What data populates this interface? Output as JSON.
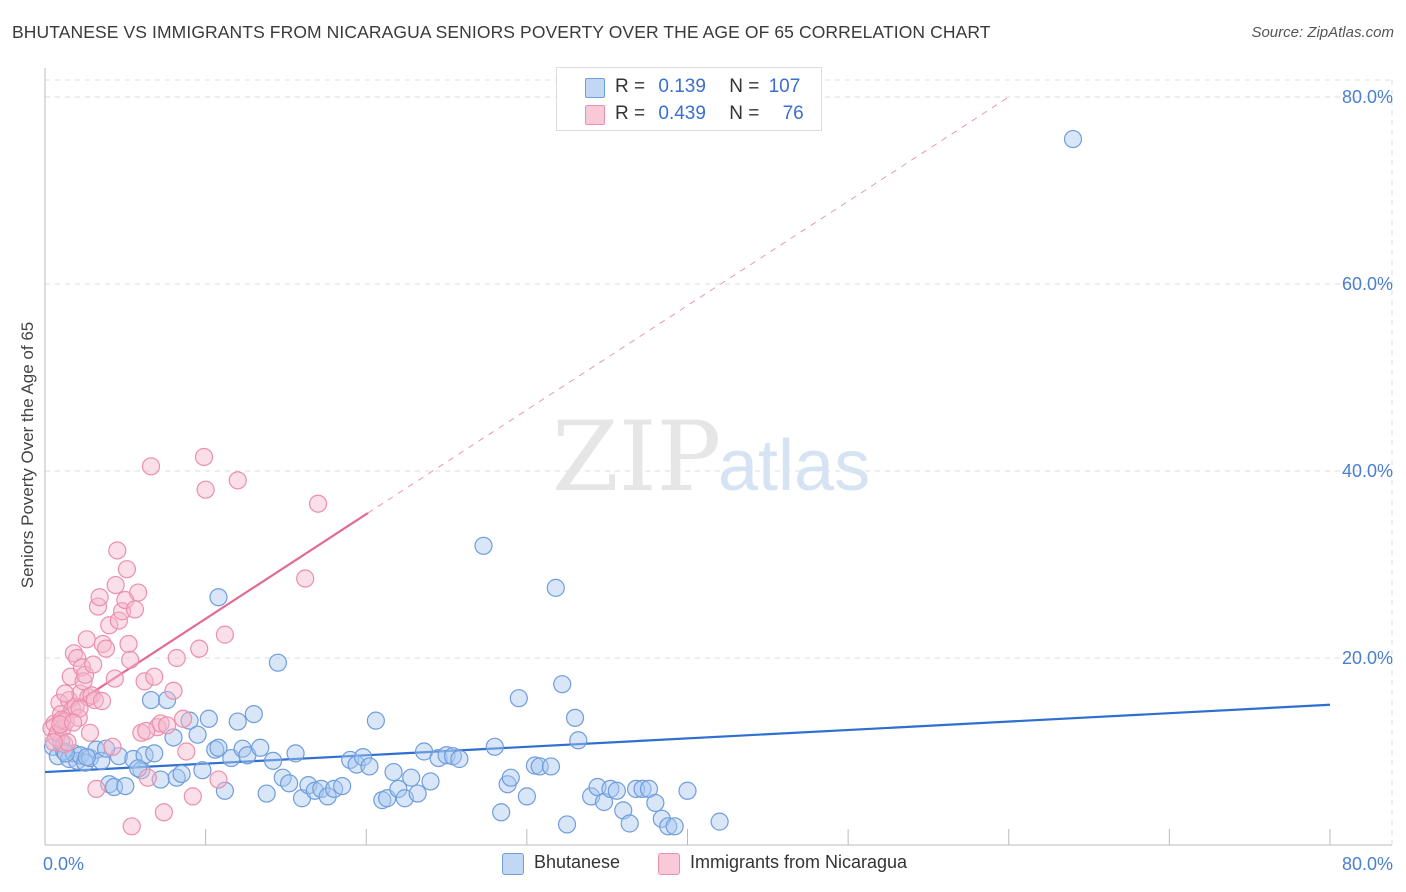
{
  "title": "BHUTANESE VS IMMIGRANTS FROM NICARAGUA SENIORS POVERTY OVER THE AGE OF 65 CORRELATION CHART",
  "source": "Source: ZipAtlas.com",
  "watermark": {
    "zip": "ZIP",
    "atlas": "atlas"
  },
  "legend": {
    "rows": [
      {
        "r_label": "R =",
        "r_value": "0.139",
        "n_label": "N =",
        "n_value": "107"
      },
      {
        "r_label": "R =",
        "r_value": "0.439",
        "n_label": "N =",
        "n_value": "76"
      }
    ]
  },
  "colors": {
    "blue_fill": "#a9c7ef",
    "blue_stroke": "#6f9ddd",
    "blue_line": "#2f6fd0",
    "pink_fill": "#f5b8cb",
    "pink_stroke": "#ec8fad",
    "pink_line": "#e36b93",
    "axis_text": "#4a7fd0"
  },
  "chart_data": {
    "type": "scatter",
    "title": "BHUTANESE VS IMMIGRANTS FROM NICARAGUA SENIORS POVERTY OVER THE AGE OF 65 CORRELATION CHART",
    "xlabel": "",
    "ylabel": "Seniors Poverty Over the Age of 65",
    "xlim": [
      0,
      80
    ],
    "ylim": [
      0,
      80
    ],
    "x_tick_labels": [
      "0.0%",
      "80.0%"
    ],
    "y_tick_values": [
      20,
      40,
      60,
      80
    ],
    "y_tick_labels": [
      "20.0%",
      "40.0%",
      "60.0%",
      "80.0%"
    ],
    "grid": true,
    "series": [
      {
        "name": "Bhutanese",
        "color": "blue",
        "r": 0.139,
        "n": 107,
        "trend": {
          "x": [
            0,
            80
          ],
          "y": [
            7.8,
            15.0
          ]
        },
        "points": [
          [
            0.5,
            10.5
          ],
          [
            0.8,
            9.5
          ],
          [
            1.0,
            11.0
          ],
          [
            1.2,
            10.0
          ],
          [
            1.5,
            9.2
          ],
          [
            1.8,
            9.8
          ],
          [
            2.0,
            9.0
          ],
          [
            2.2,
            9.6
          ],
          [
            2.5,
            8.8
          ],
          [
            2.8,
            9.3
          ],
          [
            3.2,
            10.2
          ],
          [
            3.5,
            9.0
          ],
          [
            4.0,
            6.5
          ],
          [
            4.3,
            6.2
          ],
          [
            4.6,
            9.5
          ],
          [
            5.0,
            6.3
          ],
          [
            5.5,
            9.2
          ],
          [
            6.0,
            8.0
          ],
          [
            6.2,
            9.6
          ],
          [
            6.6,
            15.5
          ],
          [
            6.8,
            9.8
          ],
          [
            7.2,
            7.0
          ],
          [
            7.6,
            15.5
          ],
          [
            8.0,
            11.5
          ],
          [
            8.2,
            7.2
          ],
          [
            8.5,
            7.6
          ],
          [
            9.0,
            13.3
          ],
          [
            9.5,
            11.8
          ],
          [
            9.8,
            8.0
          ],
          [
            10.2,
            13.5
          ],
          [
            10.6,
            10.2
          ],
          [
            10.8,
            10.4
          ],
          [
            11.2,
            5.8
          ],
          [
            11.6,
            9.3
          ],
          [
            12.0,
            13.2
          ],
          [
            12.3,
            10.3
          ],
          [
            12.6,
            9.6
          ],
          [
            13.0,
            14.0
          ],
          [
            13.4,
            10.4
          ],
          [
            13.8,
            5.5
          ],
          [
            14.2,
            9.0
          ],
          [
            14.5,
            19.5
          ],
          [
            14.8,
            7.2
          ],
          [
            15.2,
            6.6
          ],
          [
            15.6,
            9.8
          ],
          [
            16.0,
            5.0
          ],
          [
            16.4,
            6.4
          ],
          [
            16.8,
            5.8
          ],
          [
            17.2,
            6.0
          ],
          [
            17.6,
            5.2
          ],
          [
            18.0,
            6.0
          ],
          [
            18.5,
            6.3
          ],
          [
            19.0,
            9.1
          ],
          [
            19.4,
            8.6
          ],
          [
            19.8,
            9.4
          ],
          [
            20.2,
            8.4
          ],
          [
            20.6,
            13.3
          ],
          [
            21.0,
            4.8
          ],
          [
            21.3,
            5.0
          ],
          [
            21.7,
            7.8
          ],
          [
            22.0,
            6.0
          ],
          [
            22.4,
            5.0
          ],
          [
            22.8,
            7.2
          ],
          [
            23.2,
            5.5
          ],
          [
            23.6,
            10.0
          ],
          [
            24.0,
            6.8
          ],
          [
            24.5,
            9.3
          ],
          [
            25.0,
            9.6
          ],
          [
            25.4,
            9.5
          ],
          [
            25.8,
            9.2
          ],
          [
            10.8,
            26.5
          ],
          [
            27.3,
            32.0
          ],
          [
            28.0,
            10.5
          ],
          [
            28.4,
            3.5
          ],
          [
            28.8,
            6.5
          ],
          [
            29.0,
            7.2
          ],
          [
            29.5,
            15.7
          ],
          [
            30.0,
            5.2
          ],
          [
            30.5,
            8.5
          ],
          [
            30.8,
            8.4
          ],
          [
            31.5,
            8.4
          ],
          [
            31.8,
            27.5
          ],
          [
            32.2,
            17.2
          ],
          [
            32.5,
            2.2
          ],
          [
            33.0,
            13.6
          ],
          [
            33.2,
            11.2
          ],
          [
            34.0,
            5.2
          ],
          [
            34.4,
            6.2
          ],
          [
            34.8,
            4.6
          ],
          [
            35.2,
            6.0
          ],
          [
            35.6,
            5.8
          ],
          [
            36.0,
            3.7
          ],
          [
            36.4,
            2.3
          ],
          [
            36.8,
            6.0
          ],
          [
            37.2,
            6.0
          ],
          [
            37.6,
            6.0
          ],
          [
            38.0,
            4.5
          ],
          [
            38.4,
            2.8
          ],
          [
            38.8,
            2.0
          ],
          [
            39.2,
            2.0
          ],
          [
            40.0,
            5.8
          ],
          [
            42.0,
            2.5
          ],
          [
            64.0,
            75.5
          ],
          [
            1.3,
            9.8
          ],
          [
            2.6,
            9.4
          ],
          [
            3.8,
            10.3
          ],
          [
            5.8,
            8.2
          ]
        ]
      },
      {
        "name": "Immigrants from Nicaragua",
        "color": "pink",
        "r": 0.439,
        "n": 76,
        "trend": {
          "x": [
            0,
            20.1
          ],
          "y": [
            13.0,
            35.5
          ],
          "dashed_to": [
            60,
            80
          ]
        },
        "points": [
          [
            0.4,
            12.5
          ],
          [
            0.6,
            13.0
          ],
          [
            0.7,
            11.5
          ],
          [
            0.8,
            12.0
          ],
          [
            0.9,
            15.2
          ],
          [
            1.0,
            14.0
          ],
          [
            1.1,
            12.5
          ],
          [
            1.2,
            10.8
          ],
          [
            1.3,
            13.2
          ],
          [
            1.4,
            11.0
          ],
          [
            1.5,
            15.5
          ],
          [
            1.6,
            18.0
          ],
          [
            1.7,
            14.5
          ],
          [
            1.8,
            20.5
          ],
          [
            1.9,
            14.8
          ],
          [
            2.0,
            20.0
          ],
          [
            2.1,
            13.6
          ],
          [
            2.2,
            16.2
          ],
          [
            2.3,
            19.0
          ],
          [
            2.4,
            17.5
          ],
          [
            2.5,
            18.2
          ],
          [
            2.6,
            22.0
          ],
          [
            2.7,
            15.8
          ],
          [
            2.8,
            12.0
          ],
          [
            2.9,
            16.0
          ],
          [
            3.0,
            19.3
          ],
          [
            3.1,
            15.5
          ],
          [
            3.2,
            6.0
          ],
          [
            3.3,
            25.5
          ],
          [
            3.4,
            26.5
          ],
          [
            3.6,
            21.5
          ],
          [
            3.8,
            21.0
          ],
          [
            4.0,
            23.5
          ],
          [
            4.2,
            10.5
          ],
          [
            4.4,
            27.8
          ],
          [
            4.5,
            31.5
          ],
          [
            4.6,
            24.0
          ],
          [
            4.8,
            25.0
          ],
          [
            5.0,
            26.2
          ],
          [
            5.1,
            29.5
          ],
          [
            5.2,
            21.5
          ],
          [
            5.3,
            19.8
          ],
          [
            5.4,
            2.0
          ],
          [
            5.6,
            25.2
          ],
          [
            5.8,
            27.0
          ],
          [
            6.0,
            12.0
          ],
          [
            6.2,
            17.5
          ],
          [
            6.4,
            7.2
          ],
          [
            6.6,
            40.5
          ],
          [
            6.8,
            18.0
          ],
          [
            7.0,
            12.6
          ],
          [
            7.2,
            13.0
          ],
          [
            7.4,
            3.5
          ],
          [
            7.6,
            12.8
          ],
          [
            8.0,
            16.5
          ],
          [
            8.2,
            20.0
          ],
          [
            8.6,
            13.5
          ],
          [
            8.8,
            10.0
          ],
          [
            9.2,
            5.2
          ],
          [
            9.6,
            21.0
          ],
          [
            9.9,
            41.5
          ],
          [
            10.0,
            38.0
          ],
          [
            10.8,
            7.0
          ],
          [
            11.2,
            22.5
          ],
          [
            12.0,
            39.0
          ],
          [
            16.2,
            28.5
          ],
          [
            17.0,
            36.5
          ],
          [
            1.05,
            13.4
          ],
          [
            0.55,
            11.0
          ],
          [
            1.25,
            16.2
          ],
          [
            2.15,
            14.6
          ],
          [
            3.55,
            15.4
          ],
          [
            4.35,
            17.8
          ],
          [
            6.3,
            12.2
          ],
          [
            0.95,
            12.9
          ],
          [
            1.75,
            13.1
          ]
        ]
      }
    ]
  },
  "bottom_legend": {
    "items": [
      {
        "label": "Bhutanese"
      },
      {
        "label": "Immigrants from Nicaragua"
      }
    ]
  }
}
